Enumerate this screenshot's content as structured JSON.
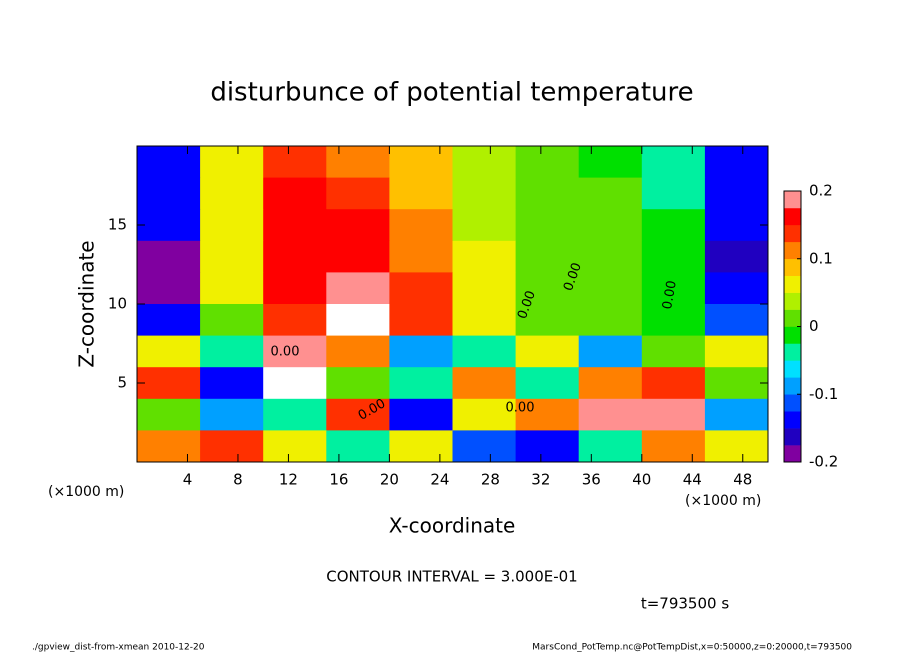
{
  "chart_data": {
    "type": "heatmap",
    "title": "disturbunce of potential temperature",
    "x_label": "X-coordinate",
    "y_label": "Z-coordinate",
    "x_unit_labels": [
      "(×1000 m)",
      "(×1000 m)"
    ],
    "xlim": [
      0,
      50
    ],
    "xticks": [
      4,
      8,
      12,
      16,
      20,
      24,
      28,
      32,
      36,
      40,
      44,
      48
    ],
    "ylim": [
      0,
      20
    ],
    "yticks": [
      5,
      10,
      15
    ],
    "x": [
      2.5,
      7.5,
      12.5,
      17.5,
      22.5,
      27.5,
      32.5,
      37.5,
      42.5,
      47.5
    ],
    "y": [
      19,
      17,
      15,
      13,
      11,
      9,
      7,
      5,
      3,
      1
    ],
    "values": [
      [
        -0.15,
        0.05,
        0.15,
        0.12,
        0.08,
        0.03,
        0.0,
        -0.02,
        -0.05,
        -0.15
      ],
      [
        -0.14,
        0.06,
        0.16,
        0.15,
        0.09,
        0.04,
        0.01,
        0.0,
        -0.03,
        -0.14
      ],
      [
        -0.15,
        0.07,
        0.17,
        0.16,
        0.1,
        0.04,
        0.01,
        0.0,
        -0.02,
        -0.15
      ],
      [
        -0.18,
        0.07,
        0.17,
        0.17,
        0.11,
        0.05,
        0.01,
        0.0,
        -0.02,
        -0.16
      ],
      [
        -0.18,
        0.05,
        0.16,
        0.19,
        0.13,
        0.05,
        0.01,
        0.0,
        -0.02,
        -0.15
      ],
      [
        -0.15,
        0.02,
        0.15,
        0.22,
        0.14,
        0.05,
        0.0,
        0.0,
        -0.01,
        -0.12
      ],
      [
        0.05,
        -0.05,
        0.2,
        0.1,
        -0.1,
        -0.05,
        0.05,
        -0.1,
        0.0,
        0.05
      ],
      [
        0.15,
        -0.15,
        0.25,
        0.0,
        -0.05,
        0.1,
        -0.05,
        0.1,
        0.15,
        0.0
      ],
      [
        0.0,
        -0.1,
        -0.05,
        0.15,
        -0.15,
        0.05,
        0.12,
        0.2,
        0.2,
        -0.1
      ],
      [
        0.1,
        0.15,
        0.05,
        -0.05,
        0.05,
        -0.12,
        -0.15,
        -0.05,
        0.1,
        0.05
      ]
    ],
    "colorbar": {
      "lim": [
        -0.2,
        0.2
      ],
      "ticks": [
        0.2,
        0.1,
        0,
        -0.1,
        -0.2
      ],
      "colors": [
        "#8000a0",
        "#2000c0",
        "#0000ff",
        "#0050ff",
        "#00a0ff",
        "#00e0ff",
        "#00f0a0",
        "#00e000",
        "#60e000",
        "#b0f000",
        "#f0f000",
        "#ffc000",
        "#ff8000",
        "#ff3000",
        "#ff0000",
        "#ff9090"
      ]
    },
    "contour_labels": [
      "0.00",
      "0.00",
      "0.00",
      "0.00",
      "0.00",
      "0.00"
    ],
    "contour_interval": "CONTOUR INTERVAL = 3.000E-01",
    "time_label": "t=793500 s",
    "footer_left": "./gpview_dist-from-xmean  2010-12-20",
    "footer_right": "MarsCond_PotTemp.nc@PotTempDist,x=0:50000,z=0:20000,t=793500"
  }
}
